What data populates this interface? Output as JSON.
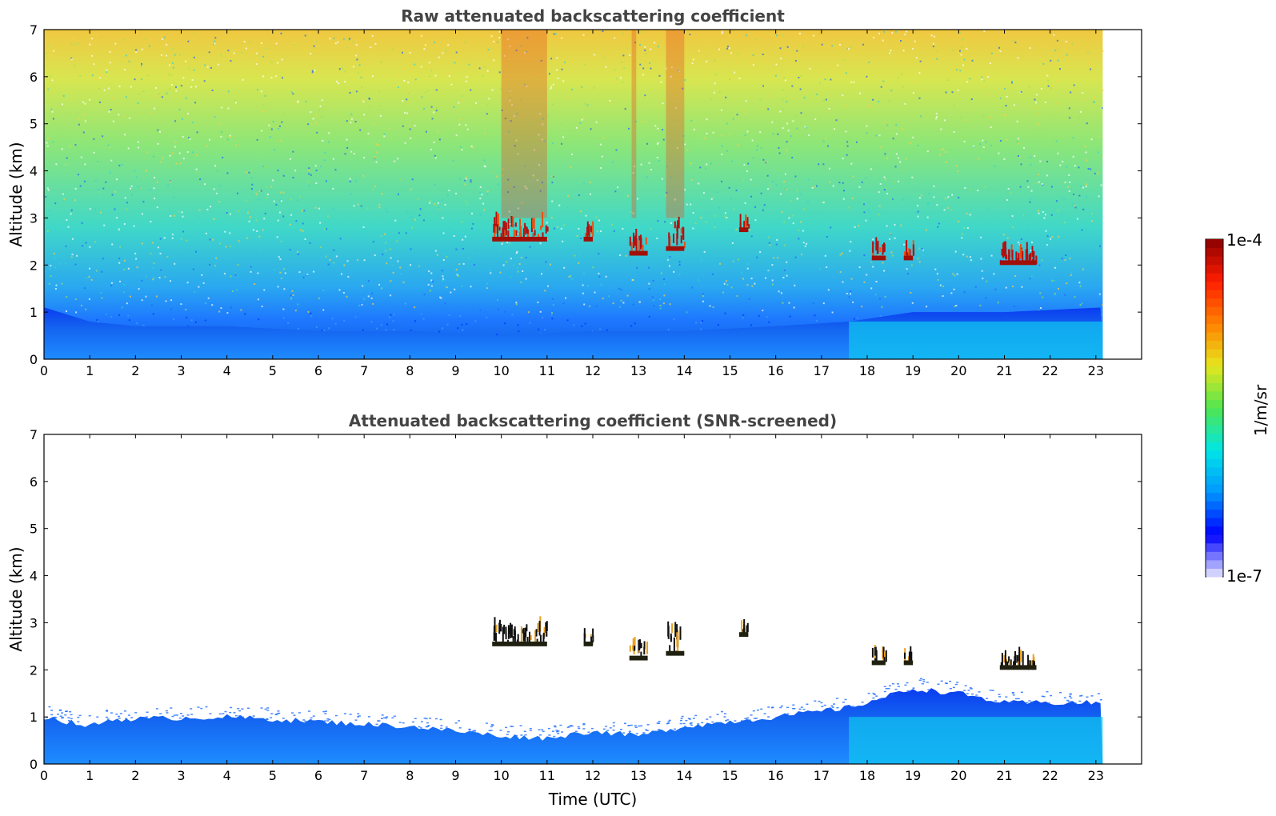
{
  "chart_data": [
    {
      "type": "heatmap",
      "title": "Raw attenuated backscattering coefficient",
      "xlabel": "",
      "ylabel": "Altitude (km)",
      "xlim": [
        0,
        24
      ],
      "ylim": [
        0,
        7
      ],
      "x_ticks": [
        "0",
        "1",
        "2",
        "3",
        "4",
        "5",
        "6",
        "7",
        "8",
        "9",
        "10",
        "11",
        "12",
        "13",
        "14",
        "15",
        "16",
        "17",
        "18",
        "19",
        "20",
        "21",
        "22",
        "23"
      ],
      "y_ticks": [
        "0",
        "1",
        "2",
        "3",
        "4",
        "5",
        "6",
        "7"
      ],
      "data_end_time": 23.15,
      "scale": "log",
      "boundary_layer_top_km": [
        {
          "t": 0,
          "z": 1.1
        },
        {
          "t": 1,
          "z": 0.8
        },
        {
          "t": 2,
          "z": 0.7
        },
        {
          "t": 4,
          "z": 0.7
        },
        {
          "t": 6,
          "z": 0.6
        },
        {
          "t": 8,
          "z": 0.6
        },
        {
          "t": 10,
          "z": 0.5
        },
        {
          "t": 12,
          "z": 0.6
        },
        {
          "t": 14,
          "z": 0.6
        },
        {
          "t": 16,
          "z": 0.7
        },
        {
          "t": 17.6,
          "z": 0.8
        },
        {
          "t": 19,
          "z": 1.0
        },
        {
          "t": 20,
          "z": 1.0
        },
        {
          "t": 21,
          "z": 1.0
        },
        {
          "t": 23.15,
          "z": 1.1
        }
      ],
      "cloud_features": [
        {
          "t_start": 9.8,
          "t_end": 11.0,
          "z_bottom": 2.5,
          "z_top": 3.0
        },
        {
          "t_start": 11.8,
          "t_end": 12.0,
          "z_bottom": 2.5,
          "z_top": 2.8
        },
        {
          "t_start": 12.8,
          "t_end": 13.2,
          "z_bottom": 2.2,
          "z_top": 2.6
        },
        {
          "t_start": 13.6,
          "t_end": 14.0,
          "z_bottom": 2.3,
          "z_top": 3.0
        },
        {
          "t_start": 15.2,
          "t_end": 15.4,
          "z_bottom": 2.7,
          "z_top": 2.9
        },
        {
          "t_start": 18.1,
          "t_end": 18.4,
          "z_bottom": 2.1,
          "z_top": 2.4
        },
        {
          "t_start": 18.8,
          "t_end": 19.0,
          "z_bottom": 2.1,
          "z_top": 2.3
        },
        {
          "t_start": 20.9,
          "t_end": 21.7,
          "z_bottom": 2.0,
          "z_top": 2.3
        }
      ]
    },
    {
      "type": "heatmap",
      "title": "Attenuated backscattering coefficient (SNR-screened)",
      "xlabel": "Time (UTC)",
      "ylabel": "Altitude (km)",
      "xlim": [
        0,
        24
      ],
      "ylim": [
        0,
        7
      ],
      "x_ticks": [
        "0",
        "1",
        "2",
        "3",
        "4",
        "5",
        "6",
        "7",
        "8",
        "9",
        "10",
        "11",
        "12",
        "13",
        "14",
        "15",
        "16",
        "17",
        "18",
        "19",
        "20",
        "21",
        "22",
        "23"
      ],
      "y_ticks": [
        "0",
        "1",
        "2",
        "3",
        "4",
        "5",
        "6",
        "7"
      ],
      "data_end_time": 23.15,
      "scale": "log",
      "boundary_layer_top_km": [
        {
          "t": 0,
          "z": 1.0
        },
        {
          "t": 1,
          "z": 0.8
        },
        {
          "t": 1.5,
          "z": 0.95
        },
        {
          "t": 4,
          "z": 1.0
        },
        {
          "t": 6,
          "z": 0.9
        },
        {
          "t": 8,
          "z": 0.8
        },
        {
          "t": 10,
          "z": 0.6
        },
        {
          "t": 11,
          "z": 0.55
        },
        {
          "t": 12,
          "z": 0.7
        },
        {
          "t": 13,
          "z": 0.6
        },
        {
          "t": 14,
          "z": 0.8
        },
        {
          "t": 16,
          "z": 1.0
        },
        {
          "t": 17.6,
          "z": 1.2
        },
        {
          "t": 19,
          "z": 1.6
        },
        {
          "t": 20,
          "z": 1.5
        },
        {
          "t": 21,
          "z": 1.3
        },
        {
          "t": 23.15,
          "z": 1.3
        }
      ],
      "cloud_features": [
        {
          "t_start": 9.8,
          "t_end": 11.0,
          "z_bottom": 2.5,
          "z_top": 3.0
        },
        {
          "t_start": 11.8,
          "t_end": 12.0,
          "z_bottom": 2.5,
          "z_top": 2.8
        },
        {
          "t_start": 12.8,
          "t_end": 13.2,
          "z_bottom": 2.2,
          "z_top": 2.6
        },
        {
          "t_start": 13.6,
          "t_end": 14.0,
          "z_bottom": 2.3,
          "z_top": 3.0
        },
        {
          "t_start": 15.2,
          "t_end": 15.4,
          "z_bottom": 2.7,
          "z_top": 2.9
        },
        {
          "t_start": 18.1,
          "t_end": 18.4,
          "z_bottom": 2.1,
          "z_top": 2.4
        },
        {
          "t_start": 18.8,
          "t_end": 19.0,
          "z_bottom": 2.1,
          "z_top": 2.3
        },
        {
          "t_start": 20.9,
          "t_end": 21.7,
          "z_bottom": 2.0,
          "z_top": 2.3
        }
      ]
    }
  ],
  "colorbar": {
    "label": "1/m/sr",
    "max_label": "1e-4",
    "min_label": "1e-7",
    "colors": [
      "#e8e8ff",
      "#0000ff",
      "#0096ff",
      "#00e6e6",
      "#50e650",
      "#e6e61e",
      "#ff8200",
      "#ff1e00",
      "#8c0000"
    ]
  }
}
